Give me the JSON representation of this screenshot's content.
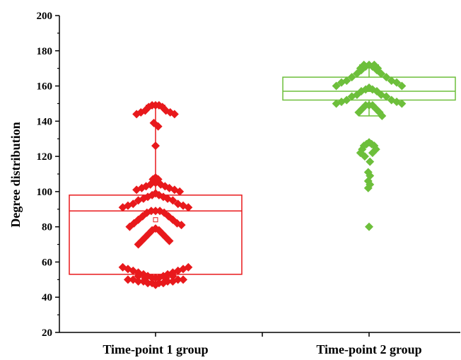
{
  "chart_data": {
    "type": "box",
    "xlabel": "",
    "ylabel": "Degree distribution",
    "ylim": [
      20,
      200
    ],
    "yticks": [
      "20",
      "40",
      "60",
      "80",
      "100",
      "120",
      "140",
      "160",
      "180",
      "200"
    ],
    "categories": [
      "Time-point 1 group",
      "Time-point 2 group"
    ],
    "legend": "none",
    "grid": false,
    "groups": [
      {
        "category": "Time-point 1 group",
        "color": "#e8191c",
        "box": {
          "q1": 53,
          "median": 89,
          "q3": 98,
          "mean": 84,
          "whisker_low": 47,
          "whisker_high": 149
        },
        "points": [
          [
            -0.38,
            57
          ],
          [
            -0.32,
            56
          ],
          [
            -0.26,
            55
          ],
          [
            -0.2,
            54
          ],
          [
            -0.14,
            53
          ],
          [
            -0.09,
            52
          ],
          [
            -0.04,
            51
          ],
          [
            0.0,
            51
          ],
          [
            0.04,
            51
          ],
          [
            0.09,
            52
          ],
          [
            0.14,
            53
          ],
          [
            0.2,
            54
          ],
          [
            0.26,
            55
          ],
          [
            0.32,
            56
          ],
          [
            0.38,
            57
          ],
          [
            -0.32,
            50
          ],
          [
            -0.26,
            50
          ],
          [
            -0.2,
            49
          ],
          [
            -0.14,
            49
          ],
          [
            -0.09,
            48
          ],
          [
            -0.04,
            48
          ],
          [
            0.0,
            47
          ],
          [
            0.04,
            48
          ],
          [
            0.09,
            48
          ],
          [
            0.14,
            49
          ],
          [
            0.2,
            49
          ],
          [
            0.26,
            50
          ],
          [
            0.32,
            50
          ],
          [
            -0.2,
            52
          ],
          [
            -0.12,
            51
          ],
          [
            0.12,
            51
          ],
          [
            0.2,
            52
          ],
          [
            -0.38,
            91
          ],
          [
            -0.32,
            92
          ],
          [
            -0.26,
            93
          ],
          [
            -0.2,
            95
          ],
          [
            -0.14,
            96
          ],
          [
            -0.09,
            97
          ],
          [
            -0.04,
            98
          ],
          [
            0.0,
            99
          ],
          [
            0.04,
            98
          ],
          [
            0.09,
            97
          ],
          [
            0.14,
            96
          ],
          [
            0.2,
            95
          ],
          [
            0.26,
            93
          ],
          [
            0.32,
            92
          ],
          [
            0.38,
            91
          ],
          [
            -0.3,
            80
          ],
          [
            -0.25,
            82
          ],
          [
            -0.2,
            84
          ],
          [
            -0.15,
            86
          ],
          [
            -0.1,
            88
          ],
          [
            -0.05,
            89
          ],
          [
            0.0,
            89
          ],
          [
            0.05,
            89
          ],
          [
            0.1,
            88
          ],
          [
            0.15,
            86
          ],
          [
            0.2,
            84
          ],
          [
            0.25,
            82
          ],
          [
            0.3,
            81
          ],
          [
            -0.2,
            70
          ],
          [
            -0.16,
            72
          ],
          [
            -0.12,
            74
          ],
          [
            -0.08,
            76
          ],
          [
            -0.04,
            78
          ],
          [
            0.0,
            79
          ],
          [
            0.04,
            78
          ],
          [
            0.08,
            76
          ],
          [
            0.12,
            74
          ],
          [
            0.16,
            72
          ],
          [
            -0.22,
            101
          ],
          [
            -0.16,
            102
          ],
          [
            -0.11,
            103
          ],
          [
            -0.06,
            104
          ],
          [
            0.0,
            105
          ],
          [
            0.06,
            104
          ],
          [
            0.11,
            103
          ],
          [
            0.16,
            102
          ],
          [
            0.22,
            101
          ],
          [
            0.28,
            100
          ],
          [
            -0.03,
            107
          ],
          [
            0.0,
            108
          ],
          [
            0.03,
            107
          ],
          [
            0.0,
            126
          ],
          [
            -0.02,
            139
          ],
          [
            0.03,
            137
          ],
          [
            -0.22,
            144
          ],
          [
            -0.17,
            145
          ],
          [
            -0.12,
            146
          ],
          [
            -0.08,
            148
          ],
          [
            -0.04,
            149
          ],
          [
            0.0,
            149
          ],
          [
            0.04,
            149
          ],
          [
            0.08,
            148
          ],
          [
            0.12,
            146
          ],
          [
            0.17,
            145
          ],
          [
            0.22,
            144
          ]
        ]
      },
      {
        "category": "Time-point 2 group",
        "color": "#6dbf3b",
        "box": {
          "q1": 152,
          "median": 157,
          "q3": 165,
          "mean": 158,
          "whisker_low": 143,
          "whisker_high": 172
        },
        "points": [
          [
            -0.38,
            160
          ],
          [
            -0.32,
            162
          ],
          [
            -0.26,
            163
          ],
          [
            -0.2,
            165
          ],
          [
            -0.14,
            167
          ],
          [
            -0.09,
            169
          ],
          [
            -0.04,
            171
          ],
          [
            0.0,
            172
          ],
          [
            0.04,
            171
          ],
          [
            0.09,
            169
          ],
          [
            0.14,
            167
          ],
          [
            0.2,
            165
          ],
          [
            0.26,
            163
          ],
          [
            0.32,
            162
          ],
          [
            0.38,
            160
          ],
          [
            -0.1,
            170
          ],
          [
            0.1,
            170
          ],
          [
            -0.06,
            172
          ],
          [
            0.06,
            172
          ],
          [
            -0.38,
            150
          ],
          [
            -0.32,
            151
          ],
          [
            -0.26,
            152
          ],
          [
            -0.2,
            154
          ],
          [
            -0.14,
            155
          ],
          [
            -0.09,
            157
          ],
          [
            -0.04,
            158
          ],
          [
            0.0,
            159
          ],
          [
            0.04,
            158
          ],
          [
            0.09,
            157
          ],
          [
            0.14,
            155
          ],
          [
            0.2,
            154
          ],
          [
            0.26,
            152
          ],
          [
            0.32,
            151
          ],
          [
            0.38,
            150
          ],
          [
            -0.12,
            145
          ],
          [
            -0.08,
            147
          ],
          [
            -0.04,
            149
          ],
          [
            0.0,
            149
          ],
          [
            0.04,
            149
          ],
          [
            0.08,
            147
          ],
          [
            0.12,
            145
          ],
          [
            0.15,
            143
          ],
          [
            -0.06,
            126
          ],
          [
            -0.03,
            127
          ],
          [
            0.0,
            128
          ],
          [
            0.03,
            127
          ],
          [
            0.06,
            126
          ],
          [
            -0.08,
            124
          ],
          [
            0.08,
            124
          ],
          [
            -0.1,
            122
          ],
          [
            0.04,
            122
          ],
          [
            -0.05,
            120
          ],
          [
            0.01,
            117
          ],
          [
            -0.01,
            111
          ],
          [
            0.01,
            109
          ],
          [
            -0.01,
            106
          ],
          [
            0.01,
            104
          ],
          [
            -0.01,
            102
          ],
          [
            0.0,
            80
          ]
        ]
      }
    ]
  }
}
